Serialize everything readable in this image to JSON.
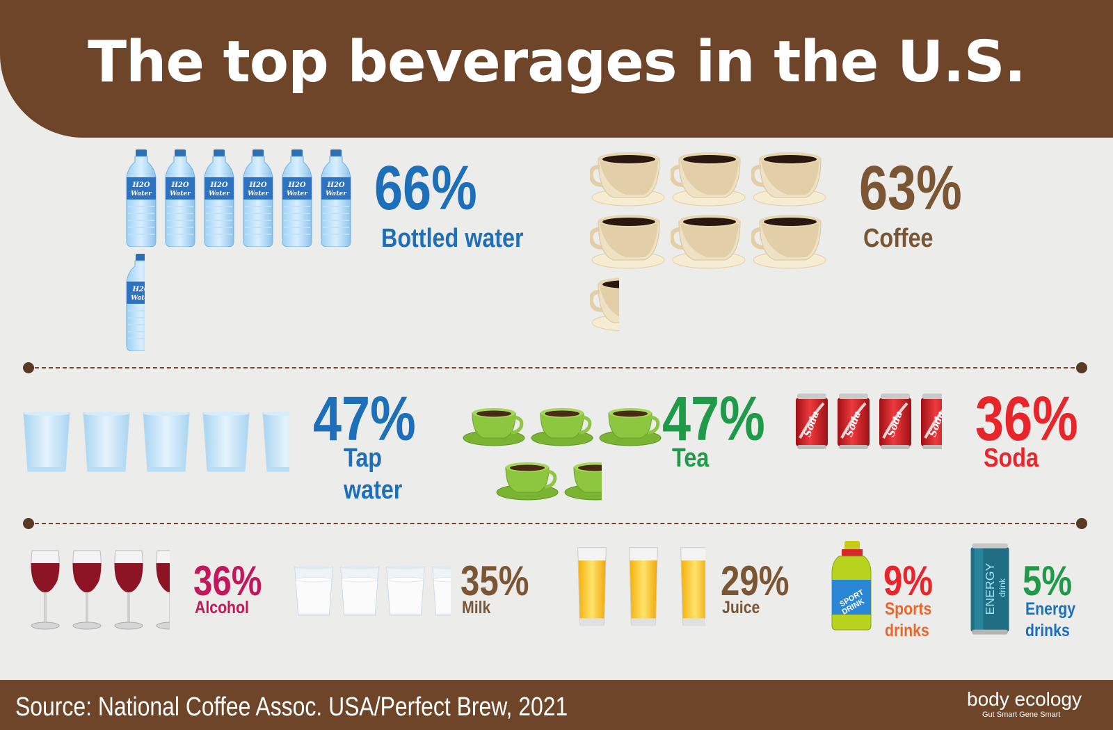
{
  "title": "The top beverages in the U.S.",
  "source": "Source: National Coffee Assoc. USA/Perfect Brew, 2021",
  "logo": {
    "name": "body ecology",
    "tagline": "Gut Smart Gene Smart"
  },
  "colors": {
    "brown": "#6e4529",
    "blue": "#1c6fb8",
    "green": "#1f9a48",
    "red": "#e8252b",
    "crimson": "#c2185b",
    "tan": "#7b5634",
    "orange": "#e8672d"
  },
  "beverages": [
    {
      "key": "bottled_water",
      "percent": "66%",
      "label": "Bottled water",
      "value": 66,
      "icon": "water-bottle-icon"
    },
    {
      "key": "coffee",
      "percent": "63%",
      "label": "Coffee",
      "value": 63,
      "icon": "coffee-cup-icon"
    },
    {
      "key": "tap_water",
      "percent": "47%",
      "label_line1": "Tap",
      "label_line2": "water",
      "value": 47,
      "icon": "water-glass-icon"
    },
    {
      "key": "tea",
      "percent": "47%",
      "label": "Tea",
      "value": 47,
      "icon": "tea-cup-icon"
    },
    {
      "key": "soda",
      "percent": "36%",
      "label": "Soda",
      "value": 36,
      "icon": "soda-can-icon"
    },
    {
      "key": "alcohol",
      "percent": "36%",
      "label": "Alcohol",
      "value": 36,
      "icon": "wine-glass-icon"
    },
    {
      "key": "milk",
      "percent": "35%",
      "label": "Milk",
      "value": 35,
      "icon": "milk-glass-icon"
    },
    {
      "key": "juice",
      "percent": "29%",
      "label": "Juice",
      "value": 29,
      "icon": "juice-glass-icon"
    },
    {
      "key": "sports",
      "percent": "9%",
      "label_line1": "Sports",
      "label_line2": "drinks",
      "value": 9,
      "icon": "sports-drink-icon"
    },
    {
      "key": "energy",
      "percent": "5%",
      "label_line1": "Energy",
      "label_line2": "drinks",
      "value": 5,
      "icon": "energy-drink-icon"
    }
  ],
  "icon_text": {
    "bottle": "H2O Water",
    "soda": "Soda",
    "sport": "SPORT DRINK",
    "energy_1": "ENERGY",
    "energy_2": "drink"
  }
}
